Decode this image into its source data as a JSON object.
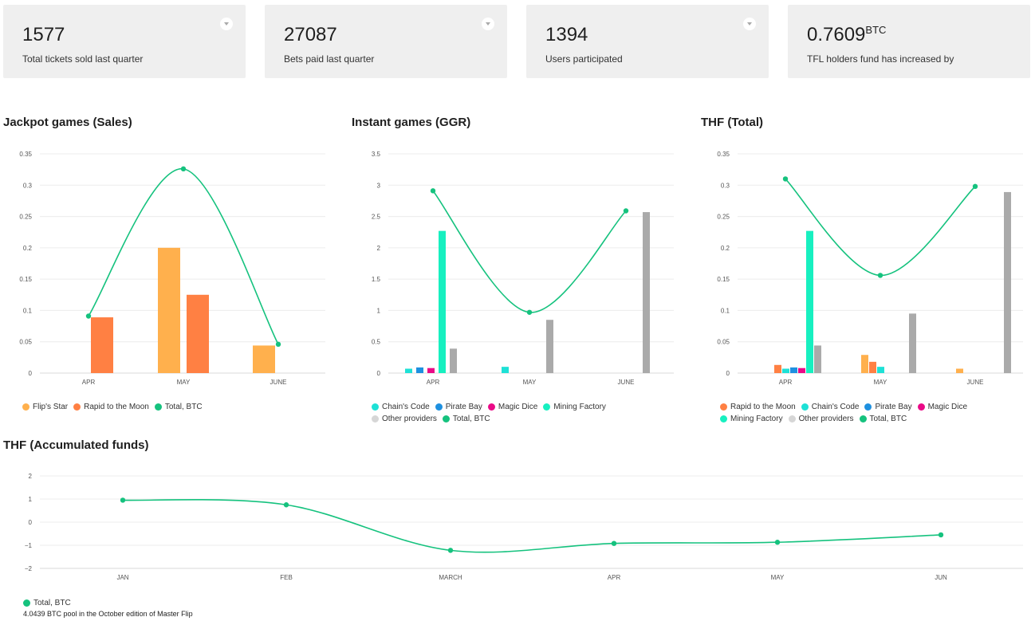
{
  "cards": [
    {
      "value": "1577",
      "unit": "",
      "label": "Total tickets sold last quarter",
      "has_dropdown": true
    },
    {
      "value": "27087",
      "unit": "",
      "label": "Bets paid last quarter",
      "has_dropdown": true
    },
    {
      "value": "1394",
      "unit": "",
      "label": "Users participated",
      "has_dropdown": true
    },
    {
      "value": "0.7609",
      "unit": "BTC",
      "label": "TFL holders fund has increased by",
      "has_dropdown": false
    }
  ],
  "colors": {
    "Flip's Star": "#ffb04d",
    "Rapid to the Moon": "#ff8043",
    "Chain's Code": "#1ee1d6",
    "Pirate Bay": "#1e90e0",
    "Magic Dice": "#ea0a87",
    "Mining Factory": "#17f0c0",
    "Other providers": "#aaaaaa",
    "Total, BTC": "#15c27e"
  },
  "footer_note": "4.0439 BTC pool in the October edition of Master Flip",
  "chart_data": [
    {
      "id": "jackpot",
      "type": "bar",
      "title": "Jackpot games (Sales)",
      "categories": [
        "APR",
        "MAY",
        "JUNE"
      ],
      "yticks": [
        "0",
        "0.05",
        "0.1",
        "0.15",
        "0.2",
        "0.25",
        "0.3",
        "0.35"
      ],
      "ylim": [
        0,
        0.35
      ],
      "grid": true,
      "series": [
        {
          "name": "Flip's Star",
          "values": [
            0,
            0.2,
            0.044
          ]
        },
        {
          "name": "Rapid to the Moon",
          "values": [
            0.089,
            0.125,
            0
          ]
        }
      ],
      "line": {
        "name": "Total, BTC",
        "values": [
          0.091,
          0.326,
          0.046
        ]
      },
      "legend": [
        "Flip's Star",
        "Rapid to the Moon",
        "Total, BTC"
      ]
    },
    {
      "id": "instant",
      "type": "bar",
      "title": "Instant games (GGR)",
      "categories": [
        "APR",
        "MAY",
        "JUNE"
      ],
      "yticks": [
        "0",
        "0.5",
        "1",
        "1.5",
        "2",
        "2.5",
        "3",
        "3.5"
      ],
      "ylim": [
        0,
        3.5
      ],
      "grid": true,
      "series": [
        {
          "name": "Chain's Code",
          "values": [
            0.07,
            0.1,
            0
          ]
        },
        {
          "name": "Pirate Bay",
          "values": [
            0.09,
            0,
            0
          ]
        },
        {
          "name": "Magic Dice",
          "values": [
            0.08,
            0,
            0
          ]
        },
        {
          "name": "Mining Factory",
          "values": [
            2.27,
            0,
            0
          ]
        },
        {
          "name": "Other providers",
          "values": [
            0.39,
            0.85,
            2.57
          ]
        }
      ],
      "line": {
        "name": "Total, BTC",
        "values": [
          2.91,
          0.97,
          2.59
        ]
      },
      "legend": [
        "Chain's Code",
        "Pirate Bay",
        "Magic Dice",
        "Mining Factory",
        "Other providers",
        "Total, BTC"
      ]
    },
    {
      "id": "thf",
      "type": "bar",
      "title": "THF (Total)",
      "categories": [
        "APR",
        "MAY",
        "JUNE"
      ],
      "yticks": [
        "0",
        "0.05",
        "0.1",
        "0.15",
        "0.2",
        "0.25",
        "0.3",
        "0.35"
      ],
      "ylim": [
        0,
        0.35
      ],
      "grid": true,
      "series": [
        {
          "name": "Flip's Star",
          "values": [
            0,
            0.029,
            0.007
          ]
        },
        {
          "name": "Rapid to the Moon",
          "values": [
            0.013,
            0.018,
            0
          ]
        },
        {
          "name": "Chain's Code",
          "values": [
            0.007,
            0.01,
            0
          ]
        },
        {
          "name": "Pirate Bay",
          "values": [
            0.009,
            0,
            0
          ]
        },
        {
          "name": "Magic Dice",
          "values": [
            0.008,
            0,
            0
          ]
        },
        {
          "name": "Mining Factory",
          "values": [
            0.227,
            0,
            0
          ]
        },
        {
          "name": "Other providers",
          "values": [
            0.044,
            0.095,
            0.289
          ]
        }
      ],
      "line": {
        "name": "Total, BTC",
        "values": [
          0.31,
          0.156,
          0.298
        ]
      },
      "legend": [
        "Rapid to the Moon",
        "Chain's Code",
        "Pirate Bay",
        "Magic Dice",
        "Mining Factory",
        "Other providers",
        "Total, BTC"
      ]
    },
    {
      "id": "accum",
      "type": "line",
      "title": "THF (Accumulated funds)",
      "categories": [
        "JAN",
        "FEB",
        "MARCH",
        "APR",
        "MAY",
        "JUN"
      ],
      "yticks": [
        "−2",
        "−1",
        "0",
        "1",
        "2"
      ],
      "ylim": [
        -2,
        2
      ],
      "grid": true,
      "line": {
        "name": "Total, BTC",
        "values": [
          0.95,
          0.75,
          -1.22,
          -0.92,
          -0.87,
          -0.55
        ]
      },
      "legend": [
        "Total, BTC"
      ]
    }
  ]
}
